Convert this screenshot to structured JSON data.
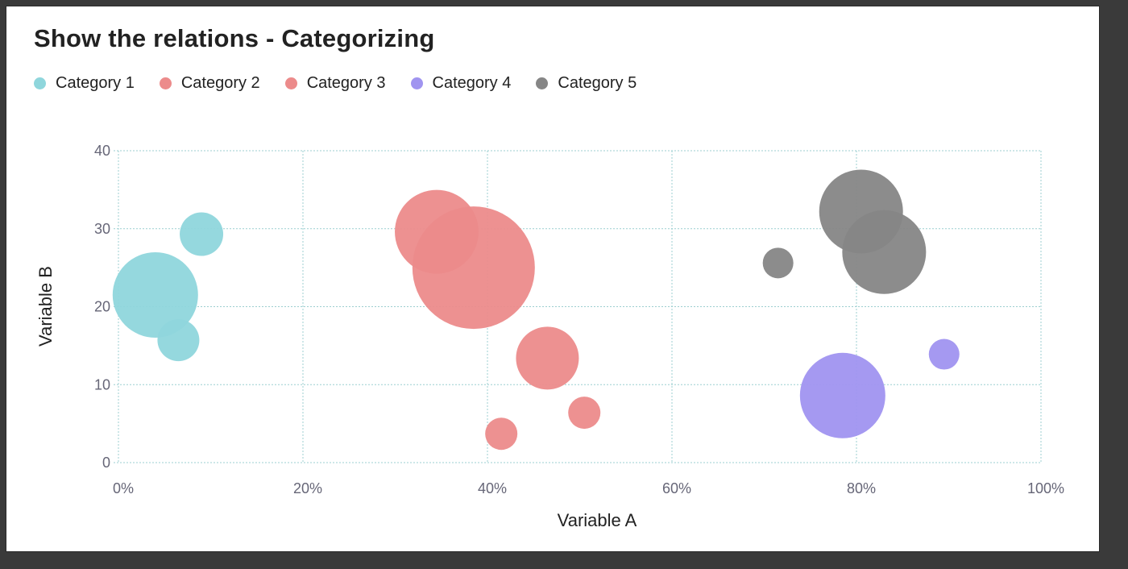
{
  "title": "Show the relations - Categorizing",
  "legend": [
    {
      "label": "Category 1",
      "color": "#8fd6dc"
    },
    {
      "label": "Category 2",
      "color": "#ec8b8b"
    },
    {
      "label": "Category 3",
      "color": "#ec8b8b"
    },
    {
      "label": "Category 4",
      "color": "#a094f0"
    },
    {
      "label": "Category 5",
      "color": "#868686"
    }
  ],
  "chart_data": {
    "type": "scatter",
    "subtype": "bubble",
    "title": "Show the relations - Categorizing",
    "xlabel": "Variable A",
    "ylabel": "Variable B",
    "xlim": [
      0,
      100
    ],
    "ylim": [
      0,
      40
    ],
    "x_ticks": [
      "0%",
      "20%",
      "40%",
      "60%",
      "80%",
      "100%"
    ],
    "y_ticks": [
      "0",
      "10",
      "20",
      "30",
      "40"
    ],
    "grid": true,
    "legend_position": "top-left",
    "series": [
      {
        "name": "Category 1",
        "color": "#8fd6dc",
        "points": [
          {
            "x": 4,
            "y": 21.5,
            "size": 53
          },
          {
            "x": 9,
            "y": 29.3,
            "size": 27
          },
          {
            "x": 6.5,
            "y": 15.7,
            "size": 26
          }
        ]
      },
      {
        "name": "Category 2",
        "color": "#ec8b8b",
        "points": [
          {
            "x": 34.5,
            "y": 29.6,
            "size": 52
          },
          {
            "x": 38.5,
            "y": 25,
            "size": 76
          }
        ]
      },
      {
        "name": "Category 3",
        "color": "#ec8b8b",
        "points": [
          {
            "x": 46.5,
            "y": 13.4,
            "size": 39
          },
          {
            "x": 50.5,
            "y": 6.4,
            "size": 20
          },
          {
            "x": 41.5,
            "y": 3.7,
            "size": 20
          }
        ]
      },
      {
        "name": "Category 4",
        "color": "#a094f0",
        "points": [
          {
            "x": 78.5,
            "y": 8.6,
            "size": 53
          },
          {
            "x": 89.5,
            "y": 13.9,
            "size": 19
          }
        ]
      },
      {
        "name": "Category 5",
        "color": "#868686",
        "points": [
          {
            "x": 71.5,
            "y": 25.6,
            "size": 19
          },
          {
            "x": 80.5,
            "y": 32.2,
            "size": 52
          },
          {
            "x": 83,
            "y": 27,
            "size": 52
          }
        ]
      }
    ]
  }
}
